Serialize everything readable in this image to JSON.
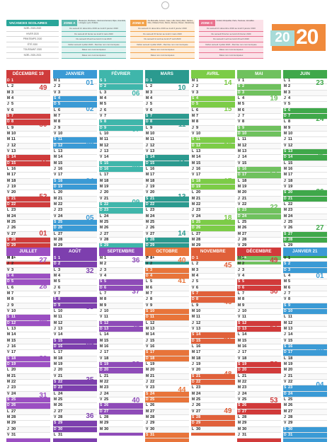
{
  "year": {
    "part1": "20",
    "part2": "20"
  },
  "vacances": {
    "title": "VACANCES SCOLAIRES",
    "rows": [
      "NOËL 2019-2020",
      "HIVER 2020",
      "PRINTEMPS 2020",
      "ÉTÉ 2020",
      "TOUSSAINT 2020",
      "NOËL 2020-2021"
    ]
  },
  "zones": [
    {
      "label": "ZONE A",
      "color": "#57b8ad",
      "bg": "#e0f2f0",
      "academies": "Besançon, Bordeaux, Clermont-Ferrand, Dijon, Grenoble, Limoges, Lyon, Poitiers",
      "rows": [
        "Du samedi 21 décembre 2019 au lundi 6 janvier 2020",
        "Du samedi 22 février au lundi 9 mars 2020",
        "Du samedi 18 avril au lundi 4 mai 2020",
        "Début samedi 4 juillet 2020 - Rentrée non communiquée",
        "Dates non communiquées",
        "Dates non communiquées"
      ]
    },
    {
      "label": "ZONE B",
      "color": "#f2a24b",
      "bg": "#fdeedd",
      "academies": "Aix-Marseille, Amiens, Caen, Lille, Nancy-Metz, Nantes, Nice, Orléans-Tours, Reims, Rennes, Rouen, Strasbourg",
      "rows": [
        "Du samedi 21 décembre 2019 au lundi 6 janvier 2020",
        "Du samedi 15 février au lundi 2 mars 2020",
        "Du samedi 11 avril au lundi 27 avril 2020",
        "Début samedi 4 juillet 2020 - Rentrée non communiquée",
        "Dates non communiquées",
        "Dates non communiquées"
      ]
    },
    {
      "label": "ZONE C",
      "color": "#e9718e",
      "bg": "#fbe1e8",
      "academies": "Créteil, Montpellier, Paris, Toulouse, Versailles",
      "rows": [
        "Du samedi 21 décembre 2019 au lundi 6 janvier 2020",
        "Du samedi 8 février au lundi 24 février 2020",
        "Du samedi 4 avril au lundi 20 avril 2020",
        "Début samedi 4 juillet 2020 - Rentrée non communiquée",
        "Dates non communiquées",
        "Dates non communiquées"
      ]
    }
  ],
  "months": [
    {
      "name": "DÉCEMBRE 19",
      "color": "#cf3b3b",
      "days": 31,
      "start": 6,
      "weeks": [
        [
          2,
          "49"
        ],
        [
          9,
          "50"
        ],
        [
          16,
          "51"
        ],
        [
          23,
          "52"
        ],
        [
          30,
          "01"
        ]
      ]
    },
    {
      "name": "JANVIER",
      "color": "#3a9ad5",
      "days": 31,
      "start": 2,
      "weeks": [
        [
          1,
          "01"
        ],
        [
          6,
          "02"
        ],
        [
          13,
          "03"
        ],
        [
          20,
          "04"
        ],
        [
          27,
          "05"
        ]
      ]
    },
    {
      "name": "FÉVRIER",
      "color": "#3fb6ab",
      "days": 29,
      "start": 5,
      "weeks": [
        [
          3,
          "06"
        ],
        [
          10,
          "07"
        ],
        [
          17,
          "08"
        ],
        [
          24,
          "09"
        ]
      ]
    },
    {
      "name": "MARS",
      "color": "#2b9a8f",
      "days": 31,
      "start": 6,
      "weeks": [
        [
          2,
          "10"
        ],
        [
          9,
          "11"
        ],
        [
          16,
          "12"
        ],
        [
          23,
          "13"
        ],
        [
          30,
          "14"
        ]
      ]
    },
    {
      "name": "AVRIL",
      "color": "#7ccc47",
      "days": 30,
      "start": 2,
      "weeks": [
        [
          1,
          "14"
        ],
        [
          6,
          "15"
        ],
        [
          13,
          "16"
        ],
        [
          20,
          "17"
        ],
        [
          27,
          "18"
        ]
      ]
    },
    {
      "name": "MAI",
      "color": "#6fc15e",
      "days": 31,
      "start": 4,
      "weeks": [
        [
          4,
          "19"
        ],
        [
          11,
          "20"
        ],
        [
          18,
          "21"
        ],
        [
          25,
          "22"
        ]
      ]
    },
    {
      "name": "JUIN",
      "color": "#3fa84a",
      "days": 30,
      "start": 0,
      "weeks": [
        [
          1,
          "23"
        ],
        [
          8,
          "24"
        ],
        [
          15,
          "25"
        ],
        [
          22,
          "26"
        ],
        [
          29,
          "27"
        ]
      ]
    },
    {
      "name": "JUILLET",
      "color": "#9b4fc2",
      "days": 31,
      "start": 2,
      "weeks": [
        [
          1,
          "27"
        ],
        [
          6,
          "28"
        ],
        [
          13,
          "29"
        ],
        [
          20,
          "30"
        ],
        [
          27,
          "31"
        ]
      ]
    },
    {
      "name": "AOÛT",
      "color": "#7d3fae",
      "days": 31,
      "start": 5,
      "weeks": [
        [
          3,
          "32"
        ],
        [
          10,
          "33"
        ],
        [
          17,
          "34"
        ],
        [
          24,
          "35"
        ],
        [
          31,
          "36"
        ]
      ]
    },
    {
      "name": "SEPTEMBRE",
      "color": "#8e4bb8",
      "days": 30,
      "start": 1,
      "weeks": [
        [
          1,
          "36"
        ],
        [
          7,
          "37"
        ],
        [
          14,
          "38"
        ],
        [
          21,
          "39"
        ],
        [
          28,
          "40"
        ]
      ]
    },
    {
      "name": "OCTOBRE",
      "color": "#e8743a",
      "days": 31,
      "start": 3,
      "weeks": [
        [
          1,
          "40"
        ],
        [
          5,
          "41"
        ],
        [
          12,
          "42"
        ],
        [
          19,
          "43"
        ],
        [
          26,
          "44"
        ]
      ]
    },
    {
      "name": "NOVEMBRE",
      "color": "#e0603a",
      "days": 30,
      "start": 6,
      "weeks": [
        [
          2,
          "45"
        ],
        [
          9,
          "46"
        ],
        [
          16,
          "47"
        ],
        [
          23,
          "48"
        ],
        [
          30,
          "49"
        ]
      ]
    },
    {
      "name": "DÉCEMBRE",
      "color": "#d13a3a",
      "days": 31,
      "start": 1,
      "weeks": [
        [
          1,
          "49"
        ],
        [
          7,
          "50"
        ],
        [
          14,
          "51"
        ],
        [
          21,
          "52"
        ],
        [
          28,
          "53"
        ]
      ]
    },
    {
      "name": "JANVIER 21",
      "color": "#3a9ad5",
      "days": 31,
      "start": 4,
      "weeks": [
        [
          4,
          "01"
        ],
        [
          11,
          "02"
        ],
        [
          18,
          "03"
        ],
        [
          25,
          "04"
        ]
      ]
    }
  ],
  "weekday_letters": [
    "L",
    "M",
    "M",
    "J",
    "V",
    "S",
    "D"
  ]
}
